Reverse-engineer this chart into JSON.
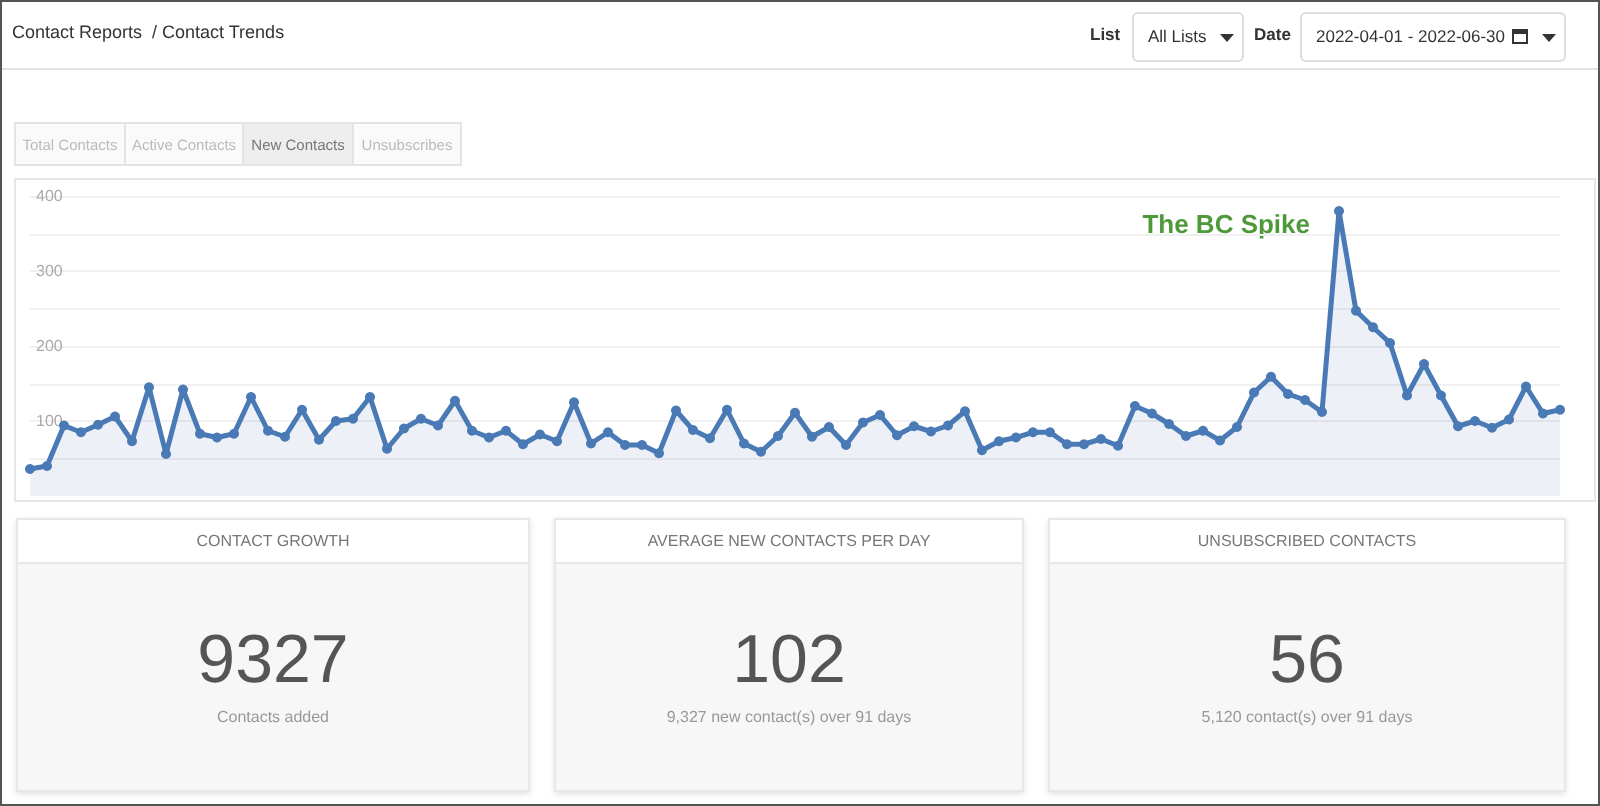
{
  "chart_data": [
    {
      "type": "area",
      "title": "Contact Reports  / Contact Trends",
      "annotations": [
        "List",
        "All Lists",
        "Date",
        "2022-04-01 - 2022-06-30",
        "Total Contacts",
        "Active Contacts",
        "New Contacts",
        "Unsubscribes",
        "The BC Spike"
      ],
      "categories": [
        null,
        null,
        null,
        null,
        null,
        null,
        null,
        null,
        null,
        null,
        null,
        null,
        null,
        null,
        null,
        null,
        null,
        null,
        null,
        null,
        null,
        null,
        null,
        null,
        null,
        null,
        null,
        null,
        null,
        null,
        null,
        null,
        null,
        null,
        null,
        null,
        null,
        null,
        null,
        null,
        null,
        null,
        null,
        null,
        null,
        null,
        null,
        null,
        null,
        null,
        null,
        null,
        null,
        null,
        null,
        null,
        null,
        null,
        null,
        null,
        null,
        null,
        null,
        null,
        null,
        null,
        null,
        null,
        null,
        null,
        null,
        null,
        null,
        null,
        null,
        null,
        null,
        null,
        null,
        null,
        null,
        null,
        null,
        null,
        null,
        null,
        null,
        null,
        null,
        null,
        null
      ],
      "series": [
        {
          "color": "#4a7ab5",
          "values": [
            36,
            40,
            94,
            85,
            95,
            106,
            73,
            145,
            56,
            142,
            83,
            78,
            83,
            132,
            87,
            79,
            115,
            75,
            100,
            103,
            132,
            63,
            90,
            103,
            94,
            127,
            87,
            78,
            87,
            69,
            82,
            73,
            125,
            70,
            85,
            68,
            68,
            57,
            114,
            88,
            77,
            115,
            70,
            59,
            80,
            111,
            79,
            92,
            68,
            98,
            108,
            81,
            93,
            86,
            94,
            113,
            61,
            73,
            78,
            85,
            85,
            69,
            69,
            76,
            67,
            120,
            110,
            96,
            80,
            87,
            74,
            92,
            138,
            159,
            136,
            128,
            112,
            380,
            247,
            225,
            204,
            134,
            176,
            134,
            93,
            100,
            91,
            102,
            146,
            110,
            115
          ]
        }
      ],
      "ylim": [
        0,
        400
      ],
      "yticks": [
        {
          "value": 50,
          "label": null
        },
        100,
        {
          "value": 150,
          "label": null
        },
        200,
        {
          "value": 250,
          "label": null
        },
        300,
        {
          "value": 350,
          "label": null
        },
        400
      ],
      "grid": "y",
      "marker": "circle",
      "line_style": "solid",
      "tick_labels": "y"
    },
    {
      "type": "other",
      "title": "CONTACT GROWTH",
      "annotations": [
        "9327",
        "Contacts added"
      ]
    },
    {
      "type": "other",
      "title": "AVERAGE NEW CONTACTS PER DAY",
      "annotations": [
        "102",
        "9,327 new contact(s) over 91 days"
      ]
    },
    {
      "type": "other",
      "title": "UNSUBSCRIBED CONTACTS",
      "annotations": [
        "56",
        "5,120 contact(s) over 91 days"
      ]
    }
  ]
}
